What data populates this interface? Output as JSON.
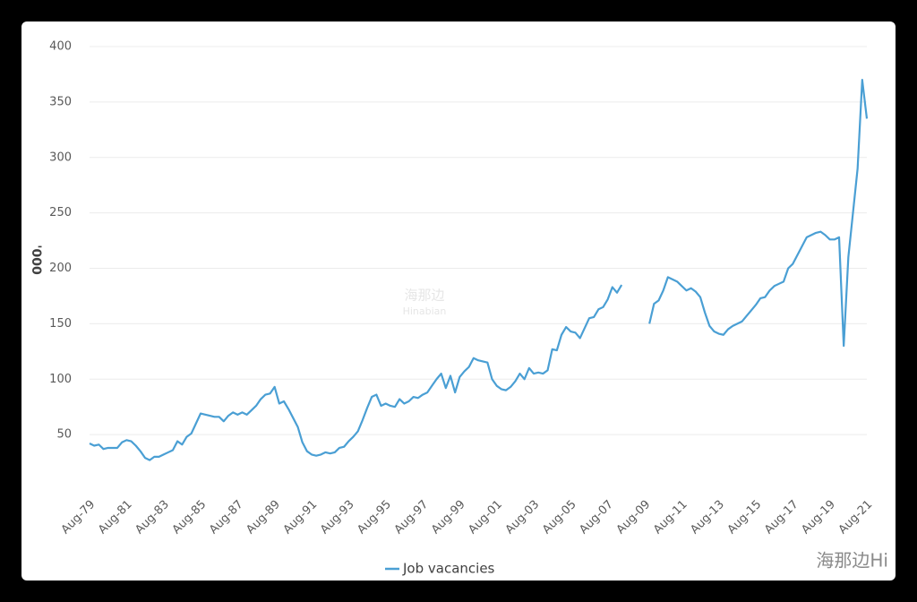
{
  "chart_data": {
    "type": "line",
    "y_label": "'000",
    "categories": [
      "Aug-79",
      null,
      null,
      null,
      null,
      null,
      null,
      null,
      "Aug-81",
      null,
      null,
      null,
      null,
      null,
      null,
      null,
      "Aug-83",
      null,
      null,
      null,
      null,
      null,
      null,
      null,
      "Aug-85",
      null,
      null,
      null,
      null,
      null,
      null,
      null,
      "Aug-87",
      null,
      null,
      null,
      null,
      null,
      null,
      null,
      "Aug-89",
      null,
      null,
      null,
      null,
      null,
      null,
      null,
      "Aug-91",
      null,
      null,
      null,
      null,
      null,
      null,
      null,
      "Aug-93",
      null,
      null,
      null,
      null,
      null,
      null,
      null,
      "Aug-95",
      null,
      null,
      null,
      null,
      null,
      null,
      null,
      "Aug-97",
      null,
      null,
      null,
      null,
      null,
      null,
      null,
      "Aug-99",
      null,
      null,
      null,
      null,
      null,
      null,
      null,
      "Aug-01",
      null,
      null,
      null,
      null,
      null,
      null,
      null,
      "Aug-03",
      null,
      null,
      null,
      null,
      null,
      null,
      null,
      "Aug-05",
      null,
      null,
      null,
      null,
      null,
      null,
      null,
      "Aug-07",
      null,
      null,
      null,
      null,
      null,
      null,
      null,
      "Aug-09",
      null,
      null,
      null,
      null,
      null,
      null,
      null,
      "Aug-11",
      null,
      null,
      null,
      null,
      null,
      null,
      null,
      "Aug-13",
      null,
      null,
      null,
      null,
      null,
      null,
      null,
      "Aug-15",
      null,
      null,
      null,
      null,
      null,
      null,
      null,
      "Aug-17",
      null,
      null,
      null,
      null,
      null,
      null,
      null,
      "Aug-19",
      null,
      null,
      null,
      null,
      null,
      null,
      null,
      "Aug-21"
    ],
    "series": [
      {
        "name": "Job vacancies",
        "color": "#4a9fd4",
        "values": [
          42,
          40,
          41,
          37,
          38,
          38,
          38,
          43,
          45,
          44,
          40,
          35,
          29,
          27,
          30,
          30,
          32,
          34,
          36,
          44,
          41,
          48,
          51,
          60,
          69,
          68,
          67,
          66,
          66,
          62,
          67,
          70,
          68,
          70,
          68,
          72,
          76,
          82,
          86,
          87,
          93,
          78,
          80,
          73,
          65,
          57,
          43,
          35,
          32,
          31,
          32,
          34,
          33,
          34,
          38,
          39,
          44,
          48,
          53,
          63,
          74,
          84,
          86,
          76,
          78,
          76,
          75,
          82,
          78,
          80,
          84,
          83,
          86,
          88,
          94,
          100,
          105,
          92,
          103,
          88,
          102,
          107,
          111,
          119,
          117,
          116,
          115,
          100,
          94,
          91,
          90,
          93,
          98,
          105,
          100,
          110,
          105,
          106,
          105,
          108,
          127,
          126,
          140,
          147,
          143,
          142,
          137,
          146,
          155,
          156,
          163,
          165,
          172,
          183,
          178,
          185,
          null,
          null,
          null,
          null,
          null,
          150,
          168,
          171,
          180,
          192,
          190,
          188,
          184,
          180,
          182,
          179,
          174,
          160,
          148,
          143,
          141,
          140,
          145,
          148,
          150,
          152,
          157,
          162,
          167,
          173,
          174,
          180,
          184,
          186,
          188,
          200,
          204,
          212,
          220,
          228,
          230,
          232,
          233,
          230,
          226,
          226,
          228,
          130,
          210,
          250,
          290,
          370,
          335
        ]
      }
    ],
    "ylim": [
      0,
      400
    ],
    "yticks": [
      50,
      100,
      150,
      200,
      250,
      300,
      350,
      400
    ],
    "grid": true,
    "legend": "bottom"
  },
  "watermark": {
    "center_cn": "海那边",
    "center_en": "Hinabian",
    "corner": "海那边Hi"
  }
}
